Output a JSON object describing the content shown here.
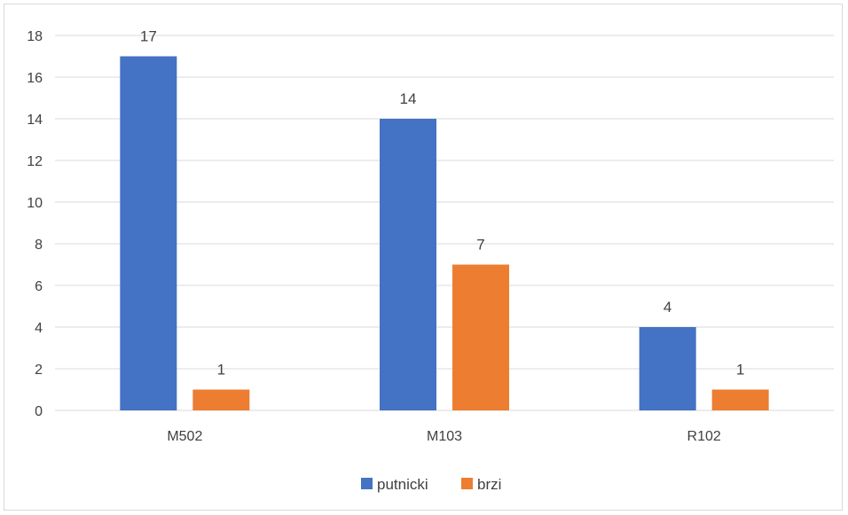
{
  "chart_data": {
    "type": "bar",
    "categories": [
      "M502",
      "M103",
      "R102"
    ],
    "series": [
      {
        "name": "putnicki",
        "values": [
          17,
          14,
          4
        ],
        "color": "#4472c4"
      },
      {
        "name": "brzi",
        "values": [
          1,
          7,
          1
        ],
        "color": "#ed7d31"
      }
    ],
    "ylim": [
      0,
      18
    ],
    "yticks": [
      0,
      2,
      4,
      6,
      8,
      10,
      12,
      14,
      16,
      18
    ],
    "grid": true,
    "legend": "bottom",
    "data_labels": true
  }
}
